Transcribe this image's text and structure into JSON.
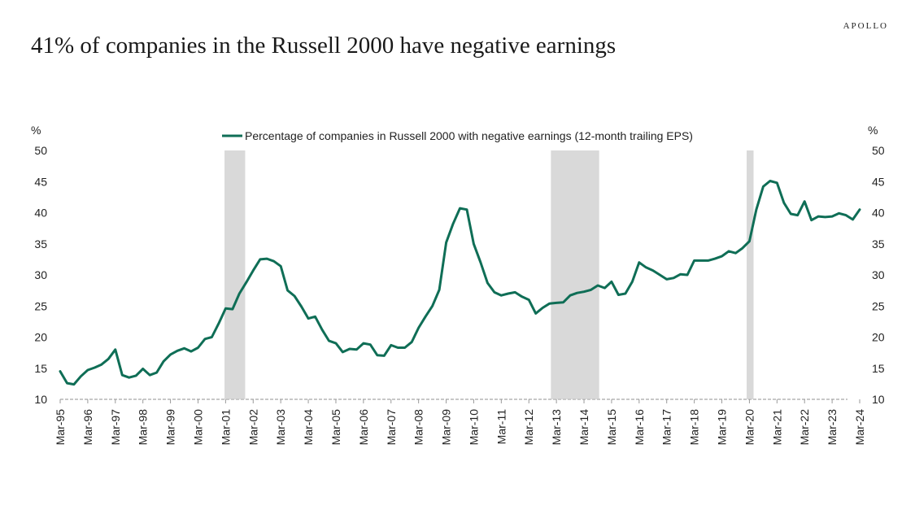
{
  "header": {
    "brand": "APOLLO",
    "title": "41% of companies in the Russell 2000 have negative earnings"
  },
  "colors": {
    "line": "#0f6e56",
    "recession": "#d9d9d9",
    "axis": "#c8c8c8",
    "text": "#222222"
  },
  "chart_data": {
    "type": "line",
    "title": "41% of companies in the Russell 2000 have negative earnings",
    "left_unit_label": "%",
    "right_unit_label": "%",
    "ylim": [
      10,
      50
    ],
    "yticks": [
      10,
      15,
      20,
      25,
      30,
      35,
      40,
      45,
      50
    ],
    "xlim": [
      1995.0,
      2024.0
    ],
    "xtick_labels": [
      "Mar-95",
      "Mar-96",
      "Mar-97",
      "Mar-98",
      "Mar-99",
      "Mar-00",
      "Mar-01",
      "Mar-02",
      "Mar-03",
      "Mar-04",
      "Mar-05",
      "Mar-06",
      "Mar-07",
      "Mar-08",
      "Mar-09",
      "Mar-10",
      "Mar-11",
      "Mar-12",
      "Mar-13",
      "Mar-14",
      "Mar-15",
      "Mar-16",
      "Mar-17",
      "Mar-18",
      "Mar-19",
      "Mar-20",
      "Mar-21",
      "Mar-22",
      "Mar-23",
      "Mar-24"
    ],
    "recessions": [
      [
        2000.96,
        2001.71
      ],
      [
        2012.8,
        2014.55
      ],
      [
        2019.9,
        2020.15
      ]
    ],
    "series": [
      {
        "name": "Percentage of companies in Russell 2000 with negative earnings (12-month trailing EPS)",
        "x": [
          1995.0,
          1995.25,
          1995.5,
          1995.75,
          1996.0,
          1996.25,
          1996.5,
          1996.75,
          1997.0,
          1997.25,
          1997.5,
          1997.75,
          1998.0,
          1998.25,
          1998.5,
          1998.75,
          1999.0,
          1999.25,
          1999.5,
          1999.75,
          2000.0,
          2000.25,
          2000.5,
          2000.75,
          2001.0,
          2001.25,
          2001.5,
          2001.75,
          2002.0,
          2002.25,
          2002.5,
          2002.75,
          2003.0,
          2003.25,
          2003.5,
          2003.75,
          2004.0,
          2004.25,
          2004.5,
          2004.75,
          2005.0,
          2005.25,
          2005.5,
          2005.75,
          2006.0,
          2006.25,
          2006.5,
          2006.75,
          2007.0,
          2007.25,
          2007.5,
          2007.75,
          2008.0,
          2008.25,
          2008.5,
          2008.75,
          2009.0,
          2009.25,
          2009.5,
          2009.75,
          2010.0,
          2010.25,
          2010.5,
          2010.75,
          2011.0,
          2011.25,
          2011.5,
          2011.75,
          2012.0,
          2012.25,
          2012.5,
          2012.75,
          2013.0,
          2013.25,
          2013.5,
          2013.75,
          2014.0,
          2014.25,
          2014.5,
          2014.75,
          2015.0,
          2015.25,
          2015.5,
          2015.75,
          2016.0,
          2016.25,
          2016.5,
          2016.75,
          2017.0,
          2017.25,
          2017.5,
          2017.75,
          2018.0,
          2018.25,
          2018.5,
          2018.75,
          2019.0,
          2019.25,
          2019.5,
          2019.75,
          2020.0,
          2020.25,
          2020.5,
          2020.75,
          2021.0,
          2021.25,
          2021.5,
          2021.75,
          2022.0,
          2022.25,
          2022.5,
          2022.75,
          2023.0,
          2023.25,
          2023.5,
          2023.75,
          2024.0
        ],
        "values": [
          14.5,
          12.6,
          12.4,
          13.7,
          14.7,
          15.1,
          15.6,
          16.5,
          18.0,
          13.9,
          13.5,
          13.8,
          14.9,
          13.9,
          14.3,
          16.1,
          17.2,
          17.8,
          18.2,
          17.7,
          18.3,
          19.7,
          20.0,
          22.2,
          24.6,
          24.5,
          27.0,
          28.8,
          30.7,
          32.5,
          32.6,
          32.2,
          31.4,
          27.5,
          26.6,
          24.9,
          23.0,
          23.3,
          21.2,
          19.4,
          19.0,
          17.6,
          18.1,
          18.0,
          19.0,
          18.8,
          17.1,
          17.0,
          18.7,
          18.3,
          18.3,
          19.2,
          21.5,
          23.3,
          25.0,
          27.6,
          35.2,
          38.2,
          40.7,
          40.5,
          35.0,
          32.0,
          28.7,
          27.2,
          26.7,
          27.0,
          27.2,
          26.5,
          26.0,
          23.8,
          24.7,
          25.4,
          25.5,
          25.6,
          26.7,
          27.1,
          27.3,
          27.6,
          28.3,
          27.9,
          28.9,
          26.8,
          27.0,
          28.9,
          32.0,
          31.2,
          30.7,
          30.0,
          29.3,
          29.5,
          30.1,
          30.0,
          32.3,
          32.3,
          32.3,
          32.6,
          33.0,
          33.8,
          33.5,
          34.3,
          35.4,
          40.5,
          44.2,
          45.1,
          44.8,
          41.6,
          39.8,
          39.6,
          41.8,
          38.8,
          39.4,
          39.3,
          39.4,
          39.9,
          39.6,
          38.9,
          40.5
        ]
      }
    ]
  }
}
